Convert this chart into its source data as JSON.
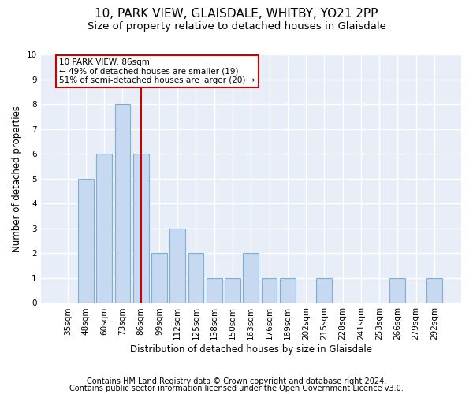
{
  "title1": "10, PARK VIEW, GLAISDALE, WHITBY, YO21 2PP",
  "title2": "Size of property relative to detached houses in Glaisdale",
  "xlabel": "Distribution of detached houses by size in Glaisdale",
  "ylabel": "Number of detached properties",
  "categories": [
    "35sqm",
    "48sqm",
    "60sqm",
    "73sqm",
    "86sqm",
    "99sqm",
    "112sqm",
    "125sqm",
    "138sqm",
    "150sqm",
    "163sqm",
    "176sqm",
    "189sqm",
    "202sqm",
    "215sqm",
    "228sqm",
    "241sqm",
    "253sqm",
    "266sqm",
    "279sqm",
    "292sqm"
  ],
  "values": [
    0,
    5,
    6,
    8,
    6,
    2,
    3,
    2,
    1,
    1,
    2,
    1,
    1,
    0,
    1,
    0,
    0,
    0,
    1,
    0,
    1
  ],
  "bar_color": "#c6d9f0",
  "bar_edge_color": "#7bafd4",
  "marker_index": 4,
  "marker_label": "10 PARK VIEW: 86sqm\n← 49% of detached houses are smaller (19)\n51% of semi-detached houses are larger (20) →",
  "marker_color": "#cc0000",
  "ylim": [
    0,
    10
  ],
  "yticks": [
    0,
    1,
    2,
    3,
    4,
    5,
    6,
    7,
    8,
    9,
    10
  ],
  "bg_color": "#e8eef7",
  "grid_color": "#ffffff",
  "footnote1": "Contains HM Land Registry data © Crown copyright and database right 2024.",
  "footnote2": "Contains public sector information licensed under the Open Government Licence v3.0.",
  "title1_fontsize": 11,
  "title2_fontsize": 9.5,
  "axis_fontsize": 8.5,
  "tick_fontsize": 7.5,
  "footnote_fontsize": 7
}
